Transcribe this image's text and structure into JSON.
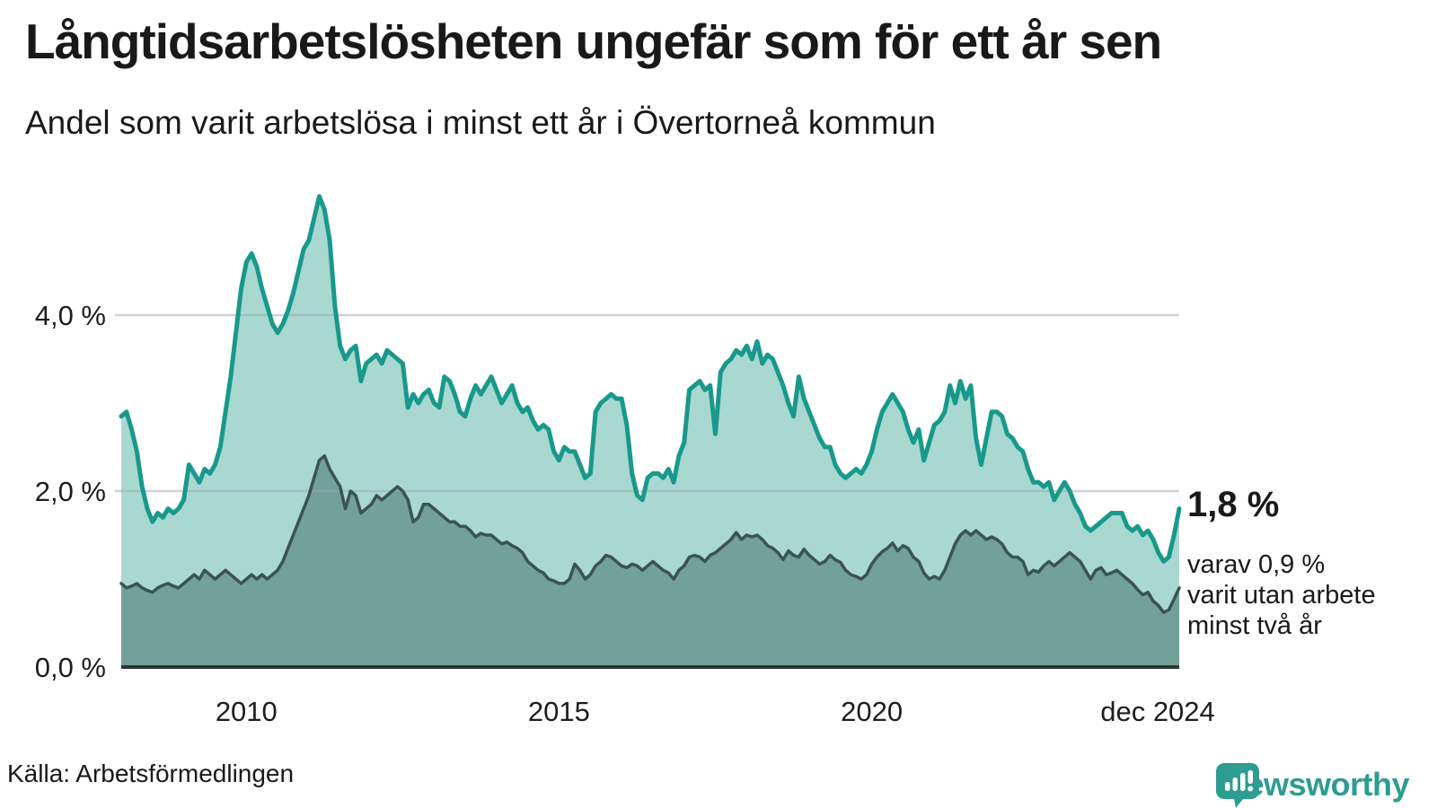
{
  "header": {
    "title": "Långtidsarbetslösheten ungefär som för ett år sen",
    "subtitle": "Andel som varit arbetslösa i minst ett år i Övertorneå kommun"
  },
  "annotation": {
    "latest_value": "1,8 %",
    "note_lines": [
      "varav 0,9 %",
      "varit utan arbete",
      "minst två år"
    ]
  },
  "source": {
    "label": "Källa: Arbetsförmedlingen"
  },
  "branding": {
    "name": "Newsworthy",
    "icon": "speech-bubble-bar-chart-icon",
    "color": "#2d9c91"
  },
  "colors": {
    "series1_line": "#18998b",
    "series1_fill": "#a9d8d1",
    "series2_line": "#3a544e",
    "series2_fill": "#72a199",
    "gridline": "#e2e2e6",
    "baseline": "#333333",
    "text": "#191919"
  },
  "chart_data": {
    "type": "area",
    "title": "Långtidsarbetslösheten ungefär som för ett år sen",
    "subtitle": "Andel som varit arbetslösa i minst ett år i Övertorneå kommun",
    "x_unit": "month",
    "x_range": [
      "2008-01",
      "2024-12"
    ],
    "ylim": [
      0,
      5.6
    ],
    "grid": "horizontal",
    "legend": "none",
    "y_ticks": [
      {
        "label": "0,0 %",
        "value": 0
      },
      {
        "label": "2,0 %",
        "value": 2
      },
      {
        "label": "4,0 %",
        "value": 4
      }
    ],
    "x_ticks": [
      {
        "label": "2010",
        "index": 24
      },
      {
        "label": "2015",
        "index": 84
      },
      {
        "label": "2020",
        "index": 144
      },
      {
        "label": "dec 2024",
        "index": 203
      }
    ],
    "end_labels": {
      "series1": "1,8 %",
      "series2": "0,9 %"
    },
    "series": [
      {
        "id": "minst-ett-ar",
        "name": "Arbetslösa minst ett år",
        "color": "#18998b",
        "fill": "#a9d8d1",
        "values": [
          2.85,
          2.9,
          2.7,
          2.45,
          2.05,
          1.8,
          1.65,
          1.75,
          1.7,
          1.8,
          1.75,
          1.8,
          1.9,
          2.3,
          2.2,
          2.1,
          2.25,
          2.2,
          2.3,
          2.5,
          2.9,
          3.3,
          3.8,
          4.3,
          4.6,
          4.7,
          4.55,
          4.3,
          4.1,
          3.9,
          3.8,
          3.9,
          4.05,
          4.25,
          4.5,
          4.75,
          4.85,
          5.1,
          5.35,
          5.2,
          4.85,
          4.1,
          3.65,
          3.5,
          3.6,
          3.65,
          3.25,
          3.45,
          3.5,
          3.55,
          3.45,
          3.6,
          3.55,
          3.5,
          3.45,
          2.95,
          3.1,
          3.0,
          3.1,
          3.15,
          3.0,
          2.95,
          3.3,
          3.25,
          3.1,
          2.9,
          2.85,
          3.05,
          3.2,
          3.1,
          3.2,
          3.3,
          3.15,
          3.0,
          3.1,
          3.2,
          3.0,
          2.9,
          2.95,
          2.8,
          2.7,
          2.75,
          2.7,
          2.45,
          2.35,
          2.5,
          2.45,
          2.45,
          2.3,
          2.15,
          2.2,
          2.9,
          3.0,
          3.05,
          3.1,
          3.05,
          3.05,
          2.75,
          2.2,
          1.95,
          1.9,
          2.15,
          2.2,
          2.2,
          2.15,
          2.25,
          2.1,
          2.4,
          2.55,
          3.15,
          3.2,
          3.25,
          3.15,
          3.2,
          2.65,
          3.35,
          3.45,
          3.5,
          3.6,
          3.55,
          3.65,
          3.5,
          3.7,
          3.45,
          3.55,
          3.5,
          3.35,
          3.2,
          3.0,
          2.85,
          3.3,
          3.05,
          2.9,
          2.75,
          2.6,
          2.5,
          2.5,
          2.3,
          2.2,
          2.15,
          2.2,
          2.25,
          2.2,
          2.3,
          2.45,
          2.7,
          2.9,
          3.0,
          3.1,
          3.0,
          2.9,
          2.7,
          2.55,
          2.7,
          2.35,
          2.55,
          2.75,
          2.8,
          2.9,
          3.2,
          3.0,
          3.25,
          3.05,
          3.2,
          2.6,
          2.3,
          2.6,
          2.9,
          2.9,
          2.85,
          2.65,
          2.6,
          2.5,
          2.45,
          2.25,
          2.1,
          2.1,
          2.05,
          2.1,
          1.9,
          2.0,
          2.1,
          2.0,
          1.85,
          1.75,
          1.6,
          1.55,
          1.6,
          1.65,
          1.7,
          1.75,
          1.75,
          1.75,
          1.6,
          1.55,
          1.6,
          1.5,
          1.55,
          1.45,
          1.3,
          1.2,
          1.25,
          1.5,
          1.8
        ]
      },
      {
        "id": "minst-tva-ar",
        "name": "Varav utan arbete minst två år",
        "color": "#3a544e",
        "fill": "#72a199",
        "values": [
          0.95,
          0.9,
          0.92,
          0.95,
          0.9,
          0.87,
          0.85,
          0.9,
          0.93,
          0.95,
          0.92,
          0.9,
          0.95,
          1.0,
          1.05,
          1.0,
          1.1,
          1.05,
          1.0,
          1.05,
          1.1,
          1.05,
          1.0,
          0.95,
          1.0,
          1.05,
          1.0,
          1.05,
          1.0,
          1.05,
          1.1,
          1.2,
          1.35,
          1.5,
          1.65,
          1.8,
          1.95,
          2.15,
          2.35,
          2.4,
          2.25,
          2.15,
          2.05,
          1.8,
          2.0,
          1.95,
          1.75,
          1.8,
          1.85,
          1.95,
          1.9,
          1.95,
          2.0,
          2.05,
          2.0,
          1.9,
          1.65,
          1.7,
          1.85,
          1.85,
          1.8,
          1.75,
          1.7,
          1.65,
          1.65,
          1.6,
          1.6,
          1.55,
          1.48,
          1.52,
          1.5,
          1.5,
          1.45,
          1.4,
          1.42,
          1.38,
          1.35,
          1.3,
          1.2,
          1.15,
          1.1,
          1.07,
          1.0,
          0.98,
          0.95,
          0.95,
          1.0,
          1.17,
          1.1,
          1.0,
          1.05,
          1.15,
          1.2,
          1.27,
          1.25,
          1.2,
          1.15,
          1.13,
          1.17,
          1.15,
          1.1,
          1.15,
          1.2,
          1.15,
          1.1,
          1.07,
          1.0,
          1.1,
          1.15,
          1.25,
          1.27,
          1.25,
          1.2,
          1.27,
          1.3,
          1.35,
          1.4,
          1.45,
          1.53,
          1.45,
          1.5,
          1.48,
          1.5,
          1.45,
          1.38,
          1.35,
          1.3,
          1.22,
          1.32,
          1.27,
          1.25,
          1.34,
          1.27,
          1.22,
          1.17,
          1.2,
          1.27,
          1.22,
          1.19,
          1.1,
          1.05,
          1.03,
          1.0,
          1.05,
          1.17,
          1.25,
          1.31,
          1.35,
          1.41,
          1.32,
          1.38,
          1.35,
          1.25,
          1.2,
          1.07,
          1.0,
          1.03,
          1.0,
          1.1,
          1.25,
          1.4,
          1.5,
          1.55,
          1.5,
          1.55,
          1.5,
          1.45,
          1.48,
          1.45,
          1.4,
          1.3,
          1.25,
          1.25,
          1.2,
          1.05,
          1.1,
          1.08,
          1.15,
          1.2,
          1.15,
          1.2,
          1.25,
          1.3,
          1.25,
          1.2,
          1.1,
          1.0,
          1.1,
          1.13,
          1.05,
          1.07,
          1.1,
          1.05,
          1.0,
          0.95,
          0.88,
          0.82,
          0.85,
          0.75,
          0.7,
          0.62,
          0.65,
          0.77,
          0.9
        ]
      }
    ]
  }
}
